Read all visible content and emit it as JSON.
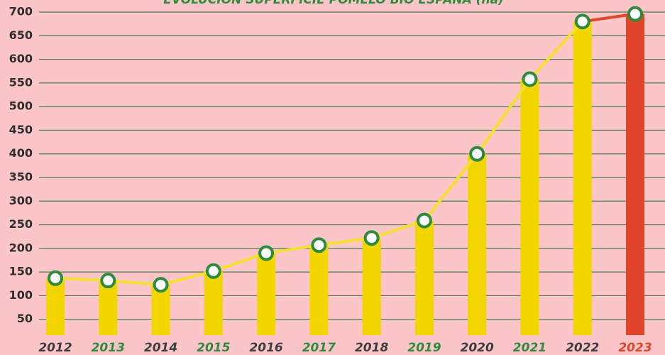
{
  "chart_data": {
    "type": "bar-line",
    "title": "EVOLUCIÓN SUPERFICIE POMELO BIO ESPAÑA (ha)",
    "categories": [
      "2012",
      "2013",
      "2014",
      "2015",
      "2016",
      "2017",
      "2018",
      "2019",
      "2020",
      "2021",
      "2022",
      "2023"
    ],
    "values": [
      137,
      132,
      123,
      152,
      190,
      207,
      222,
      259,
      400,
      558,
      680,
      696
    ],
    "bar_colors": [
      "#f3d500",
      "#f3d500",
      "#f3d500",
      "#f3d500",
      "#f3d500",
      "#f3d500",
      "#f3d500",
      "#f3d500",
      "#f3d500",
      "#f3d500",
      "#f3d500",
      "#e0452a"
    ],
    "category_colors": [
      "#3d3d3d",
      "#2e8b3e",
      "#3d3d3d",
      "#2e8b3e",
      "#3d3d3d",
      "#2e8b3e",
      "#3d3d3d",
      "#2e8b3e",
      "#3d3d3d",
      "#2e8b3e",
      "#3d3d3d",
      "#e0452a"
    ],
    "line_color": "#f5e030",
    "marker_color": "#2e8b3e",
    "ylim": [
      0,
      700
    ],
    "yticks": [
      50,
      100,
      150,
      200,
      250,
      300,
      350,
      400,
      450,
      500,
      550,
      600,
      650,
      700
    ],
    "grid": true
  }
}
